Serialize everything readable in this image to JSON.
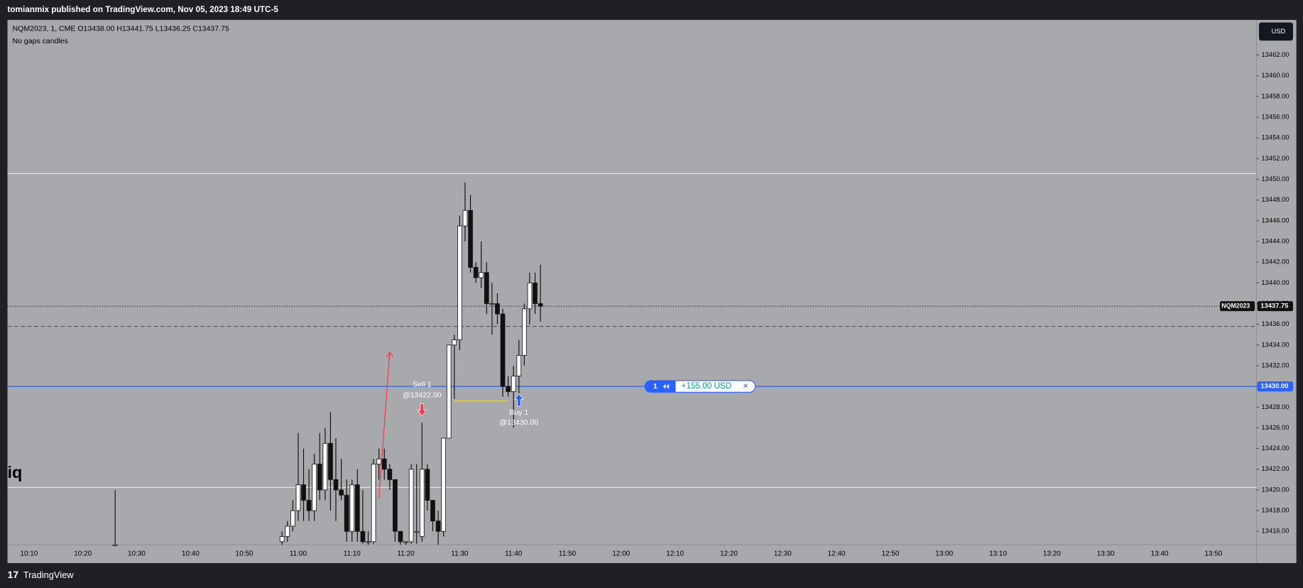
{
  "header": {
    "publisher": "tomianmix published on TradingView.com, Nov 05, 2023 18:49 UTC-5",
    "footer": "TradingView"
  },
  "chart_data": {
    "type": "candlestick",
    "legend_line": "NQM2023, 1, CME  O13438.00  H13441.75  L13436.25  C13437.75",
    "subtitle": "No gaps candles",
    "currency": "USD",
    "side_text": "iq",
    "ylim": [
      13414.7,
      13465.4
    ],
    "yticks": [
      {
        "value": 13416,
        "label": "13416.00"
      },
      {
        "value": 13418,
        "label": "13418.00"
      },
      {
        "value": 13420,
        "label": "13420.00"
      },
      {
        "value": 13422,
        "label": "13422.00"
      },
      {
        "value": 13424,
        "label": "13424.00"
      },
      {
        "value": 13426,
        "label": "13426.00"
      },
      {
        "value": 13428,
        "label": "13428.00"
      },
      {
        "value": 13430,
        "label": "13430.00"
      },
      {
        "value": 13432,
        "label": "13432.00"
      },
      {
        "value": 13434,
        "label": "13434.00"
      },
      {
        "value": 13436,
        "label": "13436.00"
      },
      {
        "value": 13438,
        "label": "13438.00"
      },
      {
        "value": 13440,
        "label": "13440.00"
      },
      {
        "value": 13442,
        "label": "13442.00"
      },
      {
        "value": 13444,
        "label": "13444.00"
      },
      {
        "value": 13446,
        "label": "13446.00"
      },
      {
        "value": 13448,
        "label": "13448.00"
      },
      {
        "value": 13450,
        "label": "13450.00"
      },
      {
        "value": 13452,
        "label": "13452.00"
      },
      {
        "value": 13454,
        "label": "13454.00"
      },
      {
        "value": 13456,
        "label": "13456.00"
      },
      {
        "value": 13458,
        "label": "13458.00"
      },
      {
        "value": 13460,
        "label": "13460.00"
      },
      {
        "value": 13462,
        "label": "13462.00"
      }
    ],
    "xlim": [
      "10:06",
      "13:58"
    ],
    "xticks": [
      "10:10",
      "10:20",
      "10:30",
      "10:40",
      "10:50",
      "11:00",
      "11:10",
      "11:20",
      "11:30",
      "11:40",
      "11:50",
      "12:00",
      "12:10",
      "12:20",
      "12:30",
      "12:40",
      "12:50",
      "13:00",
      "13:10",
      "13:20",
      "13:30",
      "13:40",
      "13:50"
    ],
    "x": [
      "10:26",
      "10:57",
      "10:58",
      "10:59",
      "11:00",
      "11:01",
      "11:02",
      "11:03",
      "11:04",
      "11:05",
      "11:06",
      "11:07",
      "11:08",
      "11:09",
      "11:10",
      "11:11",
      "11:12",
      "11:13",
      "11:14",
      "11:15",
      "11:16",
      "11:17",
      "11:18",
      "11:19",
      "11:20",
      "11:21",
      "11:22",
      "11:23",
      "11:24",
      "11:25",
      "11:26",
      "11:27",
      "11:28",
      "11:29",
      "11:30",
      "11:31",
      "11:32",
      "11:33",
      "11:34",
      "11:35",
      "11:36",
      "11:37",
      "11:38",
      "11:39",
      "11:40",
      "11:41",
      "11:42",
      "11:43",
      "11:44",
      "11:45"
    ],
    "open": [
      13414.7,
      13415,
      13415.5,
      13416.5,
      13418,
      13420.5,
      13419,
      13418,
      13422.5,
      13420,
      13424.5,
      13421,
      13420,
      13419.5,
      13416,
      13420.5,
      13416,
      13415,
      13415,
      13422.5,
      13423,
      13422,
      13421,
      13416,
      13415,
      13415,
      13416,
      13415.5,
      13422,
      13419,
      13417,
      13416,
      13425,
      13434,
      13434.5,
      13445.5,
      13447,
      13441.5,
      13440.5,
      13441,
      13438,
      13438,
      13437,
      13430,
      13429.5,
      13431,
      13433,
      13437.5,
      13440,
      13438
    ],
    "high": [
      13420,
      13416,
      13417,
      13419,
      13425.5,
      13424,
      13422,
      13423.5,
      13425.5,
      13426,
      13427.5,
      13425,
      13423,
      13421,
      13421,
      13422,
      13420,
      13416,
      13423,
      13424,
      13424,
      13422.5,
      13421,
      13416,
      13415,
      13422.5,
      13422.5,
      13426.5,
      13422.5,
      13419,
      13418,
      13425,
      13434,
      13435,
      13446.5,
      13449.7,
      13448.5,
      13442,
      13444,
      13442,
      13440,
      13439,
      13437.5,
      13431,
      13432,
      13434.5,
      13438,
      13441,
      13441,
      13441.75
    ],
    "low": [
      13414.7,
      13414.7,
      13415,
      13416,
      13417,
      13417,
      13417,
      13417,
      13419,
      13419,
      13418,
      13417,
      13419,
      13415,
      13415,
      13415,
      13414.8,
      13414.7,
      13414.8,
      13421,
      13421,
      13420,
      13415,
      13414.7,
      13414.7,
      13414.8,
      13414.8,
      13415,
      13418,
      13416,
      13414.7,
      13415.5,
      13425,
      13428.8,
      13433.5,
      13444,
      13441,
      13440,
      13439.5,
      13437,
      13435,
      13436,
      13429,
      13429,
      13426,
      13429,
      13432,
      13436,
      13437,
      13436.25
    ],
    "close": [
      13414.7,
      13415.5,
      13416.5,
      13418,
      13420.5,
      13419,
      13418,
      13422.5,
      13420,
      13424.5,
      13421,
      13420,
      13419.5,
      13416,
      13420.5,
      13416,
      13415,
      13415,
      13422.5,
      13423,
      13422,
      13421,
      13416,
      13415,
      13415,
      13422,
      13416,
      13422,
      13419,
      13417,
      13416,
      13425,
      13434,
      13434.5,
      13445.5,
      13447,
      13441.5,
      13440.5,
      13441,
      13438,
      13438,
      13437,
      13430,
      13429.5,
      13431,
      13433,
      13437.5,
      13440,
      13438,
      13437.75
    ],
    "levels": [
      13450.56,
      13420.25
    ],
    "dashed_level": 13435.8,
    "last_price": {
      "symbol": "NQM2023",
      "value": 13437.75,
      "label": "13437.75"
    },
    "position": {
      "value": 13430,
      "label": "13430.00",
      "qty": "1",
      "pnl": "+155.00 USD",
      "close": "×"
    },
    "trades": [
      {
        "side": "sell",
        "x": "11:23",
        "label": "Sell 1",
        "price_label": "@13422.00",
        "color": "#f23645"
      },
      {
        "side": "buy",
        "x": "11:41",
        "label": "Buy 1",
        "price_label": "@13430.00",
        "color": "#2962ff"
      }
    ],
    "arrow": {
      "color": "#f23645",
      "x": [
        "11:15",
        "11:17"
      ],
      "y": [
        13419.2,
        13433.3
      ]
    },
    "segment": {
      "color": "#e8d44d",
      "x": [
        "11:29",
        "11:39"
      ],
      "y": 13428.6
    }
  }
}
